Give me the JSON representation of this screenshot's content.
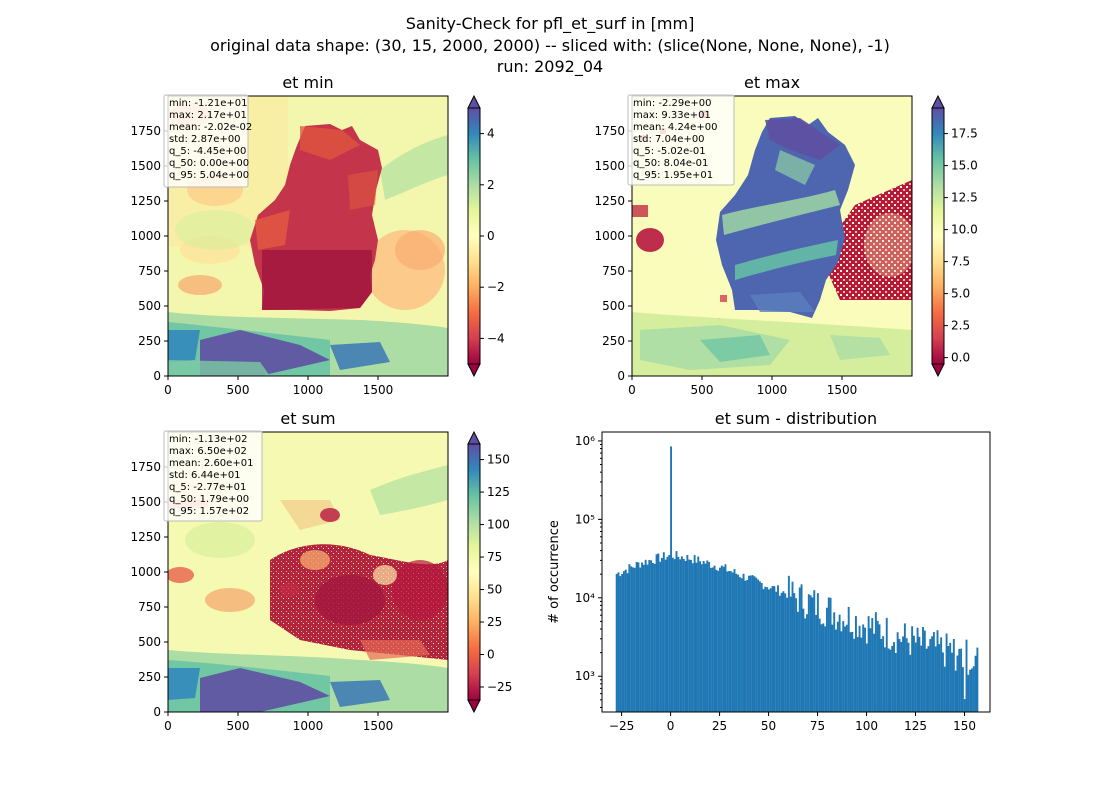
{
  "figure": {
    "title_lines": [
      "Sanity-Check for pfl_et_surf in [mm]",
      "original data shape: (30, 15, 2000, 2000) -- sliced with: (slice(None, None, None), -1)",
      "run: 2092_04"
    ]
  },
  "chart_data": [
    {
      "type": "heatmap",
      "title": "et min",
      "xlim": [
        0,
        2000
      ],
      "ylim": [
        0,
        2000
      ],
      "xticks": [
        "0",
        "500",
        "1000",
        "1500"
      ],
      "yticks": [
        "0",
        "250",
        "500",
        "750",
        "1000",
        "1250",
        "1500",
        "1750"
      ],
      "colormap": "Spectral",
      "colorbar": {
        "vmin": -5,
        "vmax": 5,
        "extend": "both",
        "ticks": [
          "−4",
          "−2",
          "0",
          "2",
          "4"
        ],
        "tick_values": [
          -4,
          -2,
          0,
          2,
          4
        ]
      },
      "stats": [
        "min: -1.21e+01",
        "max: 2.17e+01",
        "mean: -2.02e-02",
        "std: 2.87e+00",
        "q_5: -4.45e+00",
        "q_50: 0.00e+00",
        "q_95: 5.04e+00"
      ]
    },
    {
      "type": "heatmap",
      "title": "et max",
      "xlim": [
        0,
        2000
      ],
      "ylim": [
        0,
        2000
      ],
      "xticks": [
        "0",
        "500",
        "1000",
        "1500"
      ],
      "yticks": [
        "0",
        "250",
        "500",
        "750",
        "1000",
        "1250",
        "1500",
        "1750"
      ],
      "colormap": "Spectral",
      "colorbar": {
        "vmin": -0.5,
        "vmax": 19.5,
        "extend": "both",
        "ticks": [
          "0.0",
          "2.5",
          "5.0",
          "7.5",
          "10.0",
          "12.5",
          "15.0",
          "17.5"
        ],
        "tick_values": [
          0,
          2.5,
          5,
          7.5,
          10,
          12.5,
          15,
          17.5
        ]
      },
      "stats": [
        "min: -2.29e+00",
        "max: 9.33e+01",
        "mean: 4.24e+00",
        "std: 7.04e+00",
        "q_5: -5.02e-01",
        "q_50: 8.04e-01",
        "q_95: 1.95e+01"
      ]
    },
    {
      "type": "heatmap",
      "title": "et sum",
      "xlim": [
        0,
        2000
      ],
      "ylim": [
        0,
        2000
      ],
      "xticks": [
        "0",
        "500",
        "1000",
        "1500"
      ],
      "yticks": [
        "0",
        "250",
        "500",
        "750",
        "1000",
        "1250",
        "1500",
        "1750"
      ],
      "colormap": "Spectral",
      "colorbar": {
        "vmin": -35,
        "vmax": 162,
        "extend": "both",
        "ticks": [
          "−25",
          "0",
          "25",
          "50",
          "75",
          "100",
          "125",
          "150"
        ],
        "tick_values": [
          -25,
          0,
          25,
          50,
          75,
          100,
          125,
          150
        ]
      },
      "stats": [
        "min: -1.13e+02",
        "max: 6.50e+02",
        "mean: 2.60e+01",
        "std: 6.44e+01",
        "q_5: -2.77e+01",
        "q_50: 1.79e+00",
        "q_95: 1.57e+02"
      ]
    },
    {
      "type": "bar",
      "title": "et sum - distribution",
      "xlabel": "",
      "ylabel": "# of occurrence",
      "yscale": "log",
      "color": "#1f77b4",
      "xlim": [
        -35,
        163
      ],
      "ylim": [
        350,
        1300000
      ],
      "xticks": [
        "−25",
        "0",
        "25",
        "50",
        "75",
        "100",
        "125",
        "150"
      ],
      "xtick_values": [
        -25,
        0,
        25,
        50,
        75,
        100,
        125,
        150
      ],
      "yticks": [
        "10³",
        "10⁴",
        "10⁵",
        "10⁶"
      ],
      "ytick_values": [
        1000,
        10000,
        100000,
        1000000
      ],
      "bin_range": [
        -28,
        157
      ],
      "bins": 200,
      "spike": {
        "x": 0,
        "count": 850000
      },
      "profile": [
        [
          -28,
          20000
        ],
        [
          -15,
          28000
        ],
        [
          0,
          35000
        ],
        [
          10,
          32000
        ],
        [
          25,
          25000
        ],
        [
          50,
          14000
        ],
        [
          75,
          8000
        ],
        [
          100,
          4500
        ],
        [
          125,
          2700
        ],
        [
          157,
          1600
        ]
      ]
    }
  ]
}
